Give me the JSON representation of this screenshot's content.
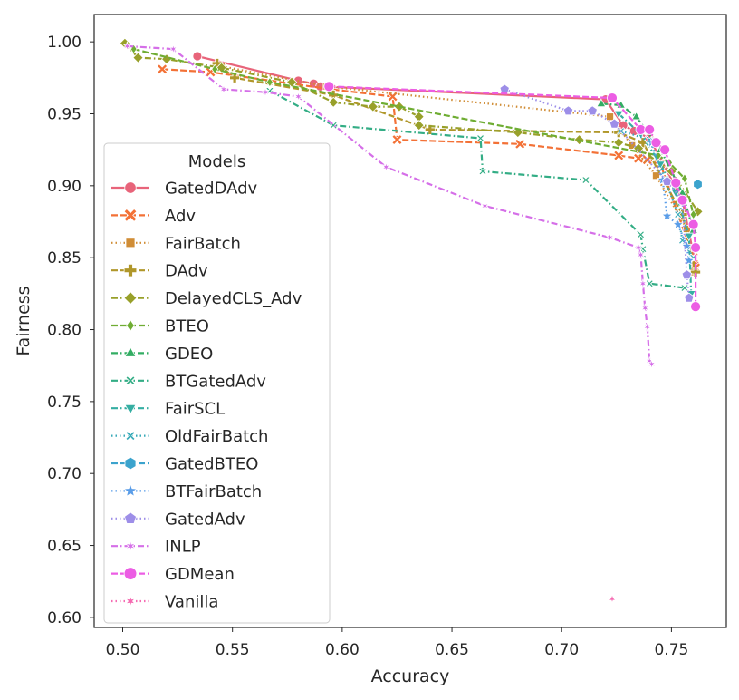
{
  "chart_data": {
    "type": "line",
    "xlabel": "Accuracy",
    "ylabel": "Fairness",
    "xlim": [
      0.487,
      0.775
    ],
    "ylim": [
      0.593,
      1.019
    ],
    "xticks": [
      0.5,
      0.55,
      0.6,
      0.65,
      0.7,
      0.75
    ],
    "xtick_labels": [
      "0.50",
      "0.55",
      "0.60",
      "0.65",
      "0.70",
      "0.75"
    ],
    "yticks": [
      0.6,
      0.65,
      0.7,
      0.75,
      0.8,
      0.85,
      0.9,
      0.95,
      1.0
    ],
    "ytick_labels": [
      "0.60",
      "0.65",
      "0.70",
      "0.75",
      "0.80",
      "0.85",
      "0.90",
      "0.95",
      "1.00"
    ],
    "grid": false,
    "legend": {
      "title": "Models",
      "placement": "center-left"
    },
    "series": [
      {
        "name": "GatedDAdv",
        "color": "#e8647a",
        "marker": "circle",
        "dash": "solid",
        "points": [
          [
            0.534,
            0.99
          ],
          [
            0.58,
            0.973
          ],
          [
            0.587,
            0.971
          ],
          [
            0.59,
            0.969
          ],
          [
            0.72,
            0.96
          ],
          [
            0.728,
            0.942
          ],
          [
            0.733,
            0.938
          ],
          [
            0.74,
            0.933
          ],
          [
            0.755,
            0.89
          ],
          [
            0.761,
            0.845
          ]
        ]
      },
      {
        "name": "Adv",
        "color": "#f37136",
        "marker": "x",
        "dash": "dash",
        "points": [
          [
            0.518,
            0.981
          ],
          [
            0.54,
            0.979
          ],
          [
            0.595,
            0.967
          ],
          [
            0.623,
            0.962
          ],
          [
            0.625,
            0.932
          ],
          [
            0.681,
            0.929
          ],
          [
            0.726,
            0.921
          ],
          [
            0.735,
            0.919
          ],
          [
            0.739,
            0.918
          ],
          [
            0.745,
            0.915
          ],
          [
            0.76,
            0.85
          ],
          [
            0.761,
            0.843
          ]
        ]
      },
      {
        "name": "FairBatch",
        "color": "#d08d36",
        "marker": "square",
        "dash": "dot",
        "points": [
          [
            0.545,
            0.983
          ],
          [
            0.593,
            0.969
          ],
          [
            0.722,
            0.948
          ],
          [
            0.732,
            0.928
          ],
          [
            0.743,
            0.907
          ],
          [
            0.757,
            0.87
          ],
          [
            0.76,
            0.84
          ]
        ]
      },
      {
        "name": "DAdv",
        "color": "#b0972a",
        "marker": "plus",
        "dash": "dash",
        "points": [
          [
            0.543,
            0.985
          ],
          [
            0.551,
            0.975
          ],
          [
            0.596,
            0.963
          ],
          [
            0.64,
            0.939
          ],
          [
            0.726,
            0.937
          ],
          [
            0.737,
            0.93
          ],
          [
            0.755,
            0.88
          ],
          [
            0.761,
            0.84
          ]
        ]
      },
      {
        "name": "DelayedCLS_Adv",
        "color": "#98a02a",
        "marker": "diamond",
        "dash": "dashdot",
        "points": [
          [
            0.501,
            0.999
          ],
          [
            0.507,
            0.989
          ],
          [
            0.52,
            0.988
          ],
          [
            0.545,
            0.982
          ],
          [
            0.577,
            0.972
          ],
          [
            0.596,
            0.958
          ],
          [
            0.614,
            0.955
          ],
          [
            0.626,
            0.955
          ],
          [
            0.635,
            0.948
          ],
          [
            0.635,
            0.942
          ],
          [
            0.68,
            0.937
          ],
          [
            0.708,
            0.932
          ],
          [
            0.726,
            0.93
          ],
          [
            0.735,
            0.926
          ],
          [
            0.75,
            0.91
          ],
          [
            0.762,
            0.882
          ]
        ]
      },
      {
        "name": "BTEO",
        "color": "#6fad33",
        "marker": "diamond-thin",
        "dash": "dash",
        "points": [
          [
            0.505,
            0.995
          ],
          [
            0.542,
            0.981
          ],
          [
            0.567,
            0.972
          ],
          [
            0.744,
            0.921
          ],
          [
            0.749,
            0.916
          ],
          [
            0.756,
            0.905
          ],
          [
            0.76,
            0.88
          ]
        ]
      },
      {
        "name": "GDEO",
        "color": "#33ad63",
        "marker": "triangle-up",
        "dash": "dashdot",
        "points": [
          [
            0.718,
            0.957
          ],
          [
            0.727,
            0.956
          ],
          [
            0.734,
            0.948
          ],
          [
            0.745,
            0.925
          ],
          [
            0.755,
            0.895
          ],
          [
            0.76,
            0.869
          ]
        ]
      },
      {
        "name": "BTGatedAdv",
        "color": "#33ad85",
        "marker": "x-thin",
        "dash": "dashdot",
        "points": [
          [
            0.567,
            0.966
          ],
          [
            0.596,
            0.942
          ],
          [
            0.663,
            0.933
          ],
          [
            0.664,
            0.91
          ],
          [
            0.711,
            0.904
          ],
          [
            0.736,
            0.866
          ],
          [
            0.737,
            0.856
          ],
          [
            0.74,
            0.832
          ],
          [
            0.756,
            0.829
          ]
        ]
      },
      {
        "name": "FairSCL",
        "color": "#35aea2",
        "marker": "triangle-down",
        "dash": "dashdot",
        "points": [
          [
            0.726,
            0.95
          ],
          [
            0.736,
            0.936
          ],
          [
            0.745,
            0.915
          ],
          [
            0.752,
            0.895
          ],
          [
            0.758,
            0.865
          ],
          [
            0.759,
            0.825
          ]
        ]
      },
      {
        "name": "OldFairBatch",
        "color": "#38aab8",
        "marker": "x-thin",
        "dash": "dot",
        "points": [
          [
            0.727,
            0.938
          ],
          [
            0.74,
            0.932
          ],
          [
            0.747,
            0.905
          ],
          [
            0.753,
            0.88
          ],
          [
            0.755,
            0.862
          ],
          [
            0.76,
            0.85
          ]
        ]
      },
      {
        "name": "GatedBTEO",
        "color": "#3ba3cd",
        "marker": "hexagon",
        "dash": "dash",
        "points": [
          [
            0.762,
            0.901
          ]
        ]
      },
      {
        "name": "BTFairBatch",
        "color": "#5a9de8",
        "marker": "star",
        "dash": "dot",
        "points": [
          [
            0.741,
            0.93
          ],
          [
            0.746,
            0.904
          ],
          [
            0.748,
            0.879
          ],
          [
            0.753,
            0.873
          ],
          [
            0.757,
            0.858
          ],
          [
            0.758,
            0.848
          ]
        ]
      },
      {
        "name": "GatedAdv",
        "color": "#9d8ee8",
        "marker": "pentagon",
        "dash": "dot",
        "points": [
          [
            0.674,
            0.967
          ],
          [
            0.703,
            0.952
          ],
          [
            0.714,
            0.952
          ],
          [
            0.724,
            0.943
          ],
          [
            0.748,
            0.903
          ],
          [
            0.755,
            0.89
          ],
          [
            0.757,
            0.838
          ],
          [
            0.758,
            0.822
          ]
        ]
      },
      {
        "name": "INLP",
        "color": "#d56fe8",
        "marker": "x-star",
        "dash": "dashdot",
        "points": [
          [
            0.502,
            0.997
          ],
          [
            0.523,
            0.995
          ],
          [
            0.546,
            0.967
          ],
          [
            0.565,
            0.965
          ],
          [
            0.58,
            0.962
          ],
          [
            0.62,
            0.913
          ],
          [
            0.665,
            0.886
          ],
          [
            0.722,
            0.864
          ],
          [
            0.735,
            0.857
          ],
          [
            0.736,
            0.852
          ],
          [
            0.737,
            0.832
          ],
          [
            0.738,
            0.815
          ],
          [
            0.739,
            0.802
          ],
          [
            0.74,
            0.778
          ],
          [
            0.741,
            0.776
          ]
        ]
      },
      {
        "name": "GDMean",
        "color": "#ec5de4",
        "marker": "circle-large",
        "dash": "dash",
        "points": [
          [
            0.594,
            0.969
          ],
          [
            0.723,
            0.961
          ],
          [
            0.736,
            0.939
          ],
          [
            0.74,
            0.939
          ],
          [
            0.743,
            0.93
          ],
          [
            0.747,
            0.925
          ],
          [
            0.752,
            0.902
          ],
          [
            0.755,
            0.89
          ],
          [
            0.76,
            0.873
          ],
          [
            0.761,
            0.857
          ],
          [
            0.761,
            0.816
          ]
        ]
      },
      {
        "name": "Vanilla",
        "color": "#f56bb2",
        "marker": "star-small",
        "dash": "dot",
        "points": [
          [
            0.723,
            0.613
          ]
        ]
      }
    ]
  }
}
